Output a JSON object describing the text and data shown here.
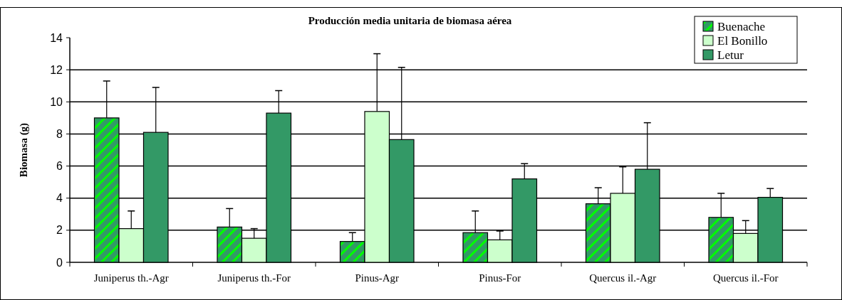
{
  "chart_data": {
    "type": "bar",
    "title": "Producción media unitaria de biomasa aérea",
    "ylabel": "Biomasa (g)",
    "categories": [
      "Juniperus th.-Agr",
      "Juniperus th.-For",
      "Pinus-Agr",
      "Pinus-For",
      "Quercus il.-Agr",
      "Quercus il.-For"
    ],
    "series": [
      {
        "name": "Buenache",
        "color": "#339966",
        "values": [
          9.0,
          2.2,
          1.3,
          1.85,
          3.65,
          2.8
        ],
        "errors": [
          [
            9.0,
            11.3
          ],
          [
            2.2,
            3.35
          ],
          [
            1.3,
            1.85
          ],
          [
            1.85,
            3.2
          ],
          [
            3.65,
            4.65
          ],
          [
            2.8,
            4.3
          ]
        ]
      },
      {
        "name": "El Bonillo",
        "color": "#ccffcc",
        "values": [
          2.1,
          1.5,
          9.4,
          1.4,
          4.3,
          1.8
        ],
        "errors": [
          [
            2.1,
            3.2
          ],
          [
            1.5,
            2.1
          ],
          [
            9.4,
            13.0
          ],
          [
            1.4,
            1.95
          ],
          [
            4.3,
            5.95
          ],
          [
            1.8,
            2.6
          ]
        ]
      },
      {
        "name": "Letur",
        "color": "#339966",
        "values": [
          8.1,
          9.3,
          7.65,
          5.2,
          5.8,
          4.05
        ],
        "errors": [
          [
            8.1,
            10.9
          ],
          [
            9.3,
            10.7
          ],
          [
            7.65,
            12.15
          ],
          [
            5.2,
            6.15
          ],
          [
            5.8,
            8.7
          ],
          [
            4.05,
            4.6
          ]
        ]
      }
    ],
    "ylim": [
      0,
      14
    ],
    "yticks": [
      0,
      2,
      4,
      6,
      8,
      10,
      12,
      14
    ],
    "grid": "y",
    "legend": "top right"
  }
}
